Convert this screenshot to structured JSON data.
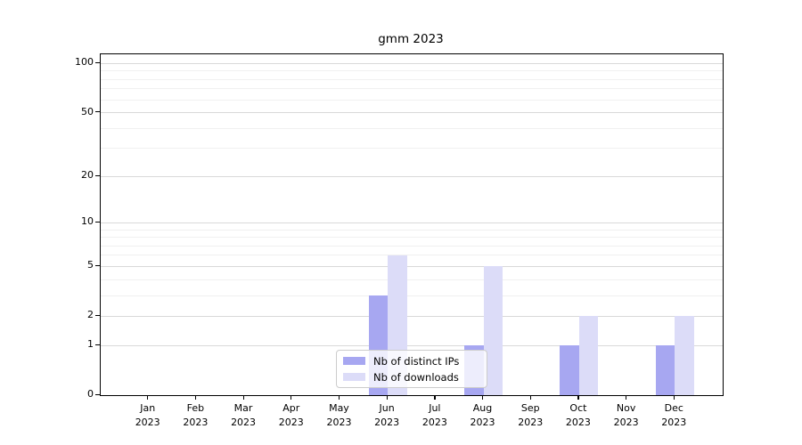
{
  "title": "gmm 2023",
  "colors": {
    "distinct_ips_bar": "#a7a7f1",
    "downloads_bar": "#dcdcf8",
    "grid_major": "#d9d9d9",
    "grid_minor": "#f0f0f0",
    "spine": "#000000",
    "legend_border": "#cccccc"
  },
  "legend": {
    "item1_label": "Nb of distinct IPs",
    "item2_label": "Nb of downloads"
  },
  "chart_data": {
    "type": "bar",
    "title": "gmm 2023",
    "xlabel": "",
    "ylabel": "",
    "y_scale": "log1p",
    "axis_top_value": 114,
    "grid": "on",
    "legend_position": "lower center-right inside plot",
    "categories": [
      "Jan 2023",
      "Feb 2023",
      "Mar 2023",
      "Apr 2023",
      "May 2023",
      "Jun 2023",
      "Jul 2023",
      "Aug 2023",
      "Sep 2023",
      "Oct 2023",
      "Nov 2023",
      "Dec 2023"
    ],
    "series": [
      {
        "name": "Nb of distinct IPs",
        "color": "#a7a7f1",
        "values": [
          0,
          0,
          0,
          0,
          0,
          3,
          0,
          1,
          0,
          1,
          0,
          1
        ]
      },
      {
        "name": "Nb of downloads",
        "color": "#dcdcf8",
        "values": [
          0,
          0,
          0,
          0,
          0,
          6,
          0,
          5,
          0,
          2,
          0,
          2
        ]
      }
    ],
    "y_ticks": [
      0,
      1,
      2,
      5,
      10,
      20,
      50,
      100
    ],
    "y_minor_ticks": [
      3,
      4,
      6,
      7,
      8,
      9,
      30,
      40,
      60,
      70,
      80,
      90
    ]
  }
}
